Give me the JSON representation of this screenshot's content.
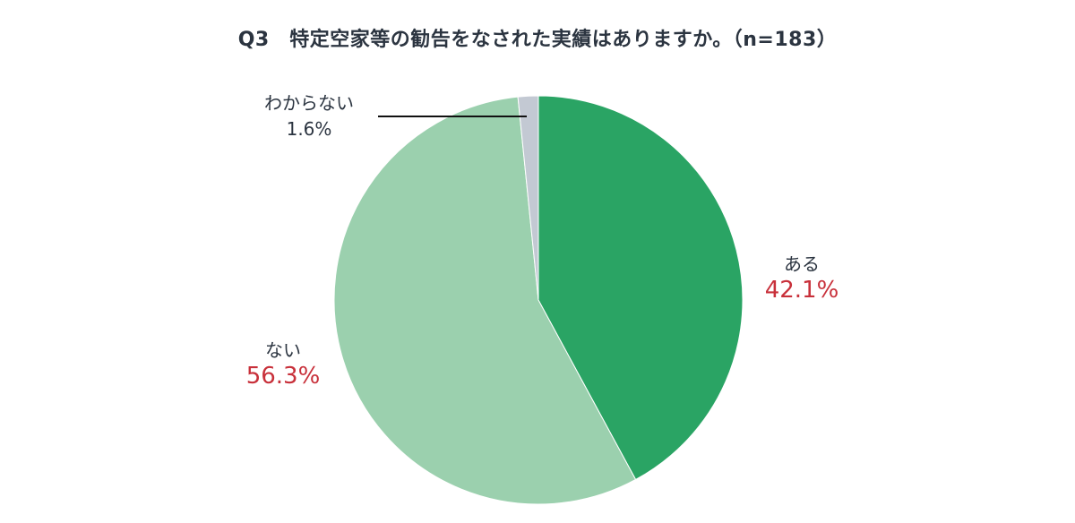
{
  "title": "Q3　特定空家等の勧告をなされた実績はありますか。（n=183）",
  "chart_data": {
    "type": "pie",
    "title": "Q3　特定空家等の勧告をなされた実績はありますか。（n=183）",
    "n": 183,
    "categories": [
      "ある",
      "ない",
      "わからない"
    ],
    "values": [
      42.1,
      56.3,
      1.6
    ],
    "colors": [
      "#2aa464",
      "#9bd0ae",
      "#c3c9d3"
    ],
    "start_angle": "12 o'clock, clockwise",
    "labels": [
      {
        "name": "ある",
        "value_text": "42.1%"
      },
      {
        "name": "ない",
        "value_text": "56.3%"
      },
      {
        "name": "わからない",
        "value_text": "1.6%"
      }
    ]
  },
  "colors": {
    "value_highlight": "#c8303a",
    "text": "#2b3440"
  }
}
